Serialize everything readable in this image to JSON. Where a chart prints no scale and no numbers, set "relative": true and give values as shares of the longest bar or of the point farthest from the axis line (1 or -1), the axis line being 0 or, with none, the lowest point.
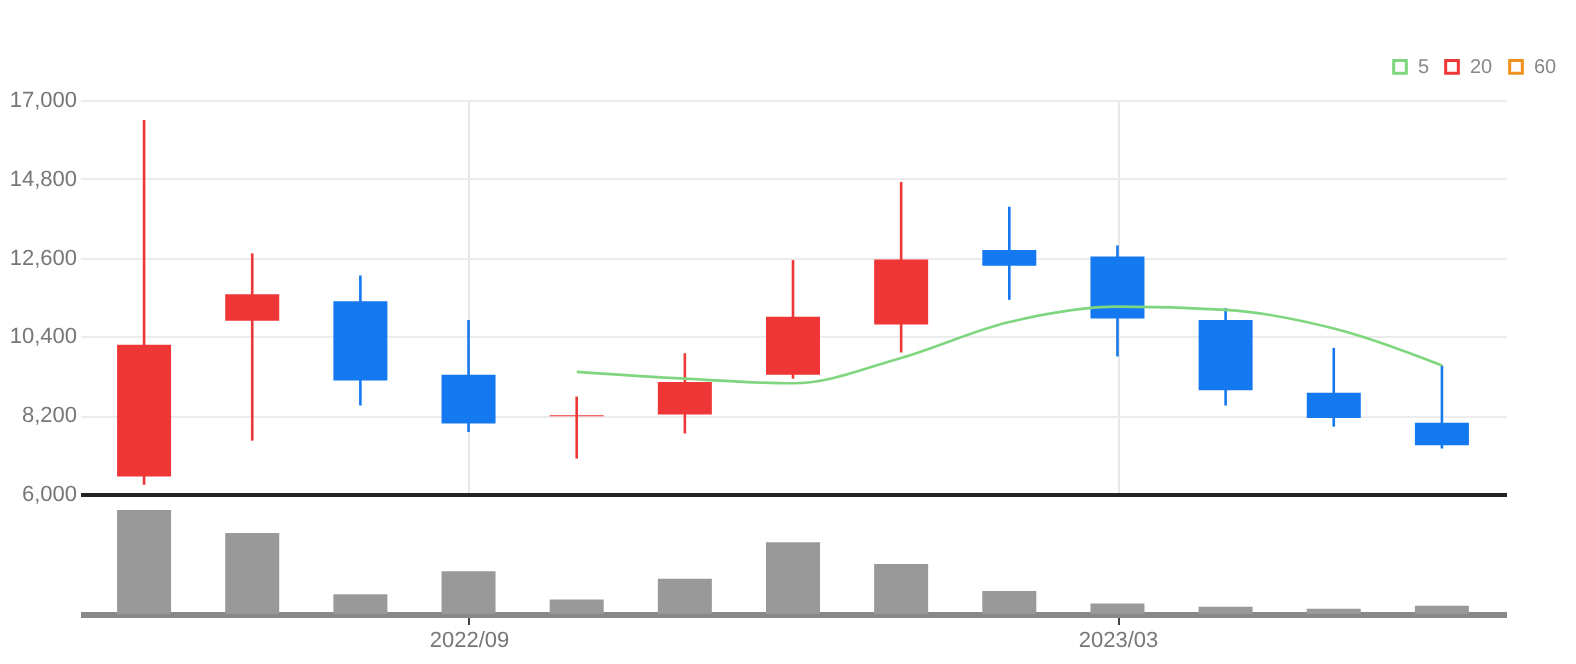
{
  "chart_data": [
    {
      "type": "candlestick",
      "categories": [
        null,
        null,
        null,
        "2022/09",
        null,
        null,
        null,
        null,
        null,
        "2023/03",
        null,
        null,
        null
      ],
      "ohlc": [
        [
          6490,
          16440,
          6260,
          10170
        ],
        [
          10840,
          12720,
          7490,
          11580
        ],
        [
          11380,
          12100,
          8470,
          9170
        ],
        [
          9330,
          10860,
          7730,
          7970
        ],
        [
          8170,
          8720,
          6990,
          8200
        ],
        [
          8220,
          9930,
          7690,
          9130
        ],
        [
          9330,
          12530,
          9220,
          10950
        ],
        [
          10730,
          14710,
          9950,
          12550
        ],
        [
          12810,
          14020,
          11420,
          12370
        ],
        [
          12630,
          12940,
          9840,
          10900
        ],
        [
          10860,
          11190,
          8470,
          8900
        ],
        [
          8830,
          10080,
          7880,
          8120
        ],
        [
          7990,
          9590,
          7270,
          7360
        ]
      ],
      "colors": [
        "#ee3636",
        "#ee3636",
        "#1478f0",
        "#1478f0",
        "#ee3636",
        "#ee3636",
        "#ee3636",
        "#ee3636",
        "#1478f0",
        "#1478f0",
        "#1478f0",
        "#1478f0",
        "#1478f0"
      ],
      "series": [
        {
          "name": "5",
          "type": "line",
          "color": "#7fd67f",
          "values": [
            null,
            null,
            null,
            null,
            9410,
            9220,
            9090,
            9800,
            10800,
            11230,
            11140,
            10620,
            9590
          ]
        },
        {
          "name": "20",
          "type": "line",
          "color": "#ee3636",
          "values": [
            null,
            null,
            null,
            null,
            null,
            null,
            null,
            null,
            null,
            null,
            null,
            null,
            null
          ]
        },
        {
          "name": "60",
          "type": "line",
          "color": "#f0901e",
          "values": [
            null,
            null,
            null,
            null,
            null,
            null,
            null,
            null,
            null,
            null,
            null,
            null,
            null
          ]
        }
      ],
      "ylim": [
        6000,
        17000
      ],
      "yticks": [
        {
          "value": 6000,
          "label": "6,000"
        },
        {
          "value": 8200,
          "label": "8,200"
        },
        {
          "value": 10400,
          "label": "10,400"
        },
        {
          "value": 12600,
          "label": "12,600"
        },
        {
          "value": 14800,
          "label": "14,800"
        },
        {
          "value": 17000,
          "label": "17,000"
        }
      ],
      "grid": true,
      "legend": "top right",
      "tick_labels": "y"
    },
    {
      "type": "bar",
      "relative": true,
      "categories": [
        null,
        null,
        null,
        "2022/09",
        null,
        null,
        null,
        null,
        null,
        "2023/03",
        null,
        null,
        null
      ],
      "values": [
        1,
        0.78,
        0.19,
        0.41,
        0.14,
        0.34,
        0.69,
        0.48,
        0.22,
        0.1,
        0.07,
        0.05,
        0.08
      ],
      "color": "#999999",
      "tick_labels": "x"
    }
  ]
}
